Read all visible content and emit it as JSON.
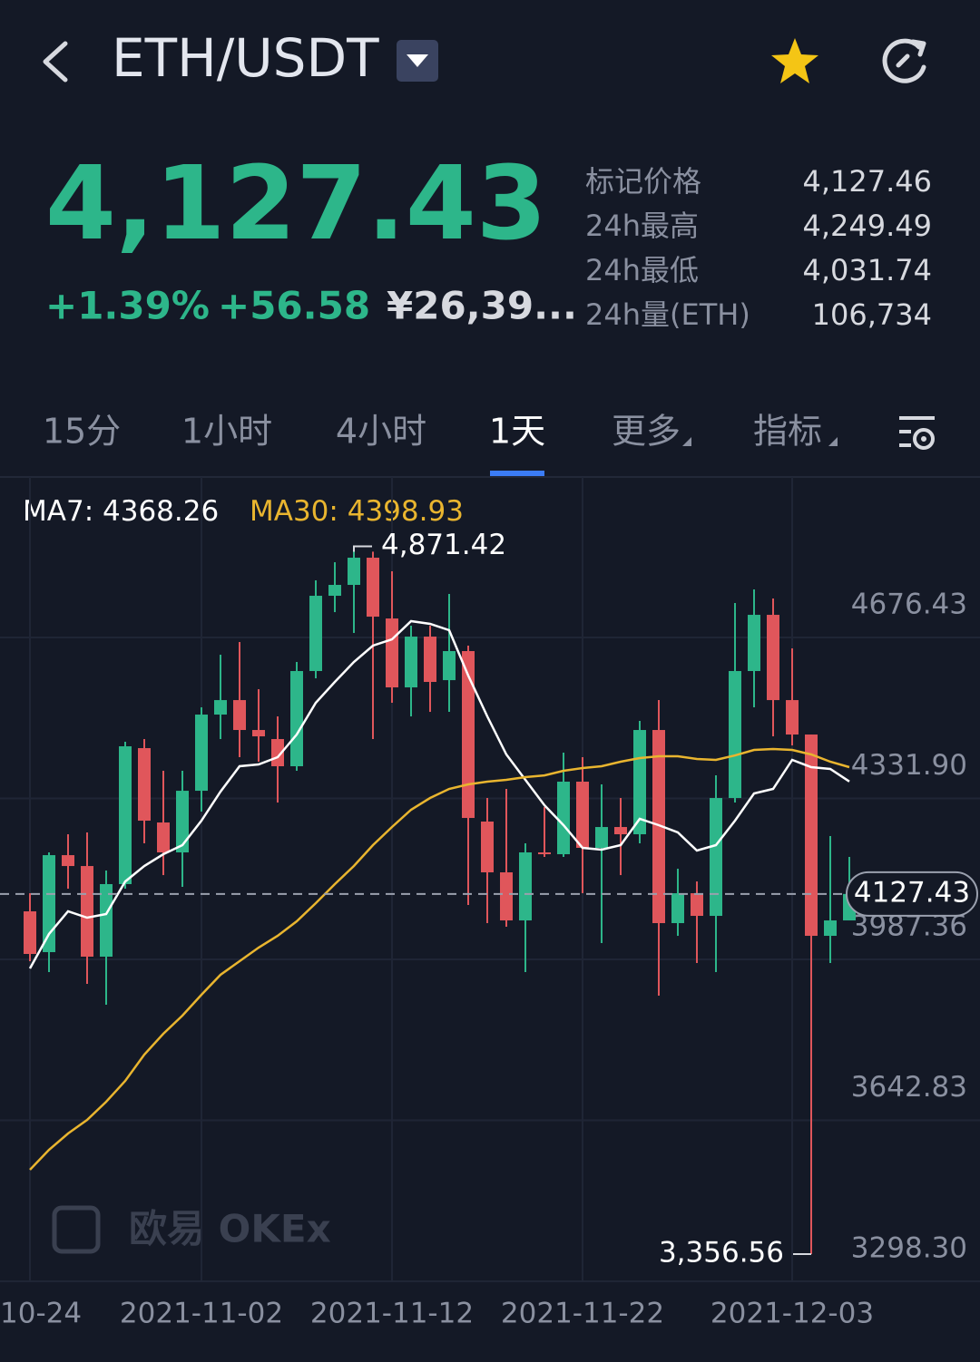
{
  "header": {
    "pair": "ETH/USDT"
  },
  "ticker": {
    "price": "4,127.43",
    "change_pct": "+1.39%",
    "change": "+56.58",
    "cny": "¥26,39...",
    "stats": [
      {
        "label": "标记价格",
        "value": "4,127.46"
      },
      {
        "label": "24h最高",
        "value": "4,249.49"
      },
      {
        "label": "24h最低",
        "value": "4,031.74"
      },
      {
        "label": "24h量(ETH)",
        "value": "106,734"
      }
    ]
  },
  "tabs": {
    "items": [
      "15分",
      "1小时",
      "4小时",
      "1天",
      "更多",
      "指标"
    ],
    "active": 3
  },
  "watermark": "欧易 OKEx",
  "chart_data": {
    "type": "candlestick",
    "up_color": "#2db68a",
    "down_color": "#e0565b",
    "categories": [
      "10-24",
      null,
      null,
      null,
      null,
      null,
      null,
      null,
      null,
      "2021-11-02",
      null,
      null,
      null,
      null,
      null,
      null,
      null,
      null,
      null,
      "2021-11-12",
      null,
      null,
      null,
      null,
      null,
      null,
      null,
      null,
      null,
      "2021-11-22",
      null,
      null,
      null,
      null,
      null,
      null,
      null,
      null,
      null,
      null,
      "2021-12-03",
      null,
      null,
      null
    ],
    "open": [
      4090.2,
      4002.9,
      4210.5,
      4187.2,
      3993.2,
      4148.5,
      4439.6,
      4280.4,
      4216.4,
      4348.3,
      4511.4,
      4542.4,
      4478.4,
      4459.0,
      4400.8,
      4604.6,
      4765.7,
      4789.0,
      4847.2,
      4717.1,
      4569.6,
      4678.3,
      4585.1,
      4647.3,
      4282.4,
      4173.7,
      4070.8,
      4216.4,
      4212.5,
      4367.8,
      4226.1,
      4270.7,
      4255.2,
      4478.4,
      4065.0,
      4129.0,
      4080.5,
      4332.8,
      4604.6,
      4724.9,
      4542.4,
      4468.7,
      4037.8,
      4070.8
    ],
    "high": [
      4129.0,
      4216.4,
      4255.2,
      4259.1,
      4177.6,
      4453.2,
      4459.0,
      4391.1,
      4391.1,
      4526.9,
      4639.5,
      4666.7,
      4565.7,
      4507.5,
      4624.0,
      4798.7,
      4837.5,
      4871.42,
      4860.0,
      4818.1,
      4701.6,
      4701.6,
      4769.5,
      4658.9,
      4332.8,
      4352.2,
      4235.8,
      4313.4,
      4429.9,
      4420.2,
      4361.9,
      4332.8,
      4497.8,
      4542.4,
      4181.4,
      4154.2,
      4381.3,
      4750.1,
      4779.2,
      4759.8,
      4653.1,
      4468.7,
      4251.3,
      4206.7
    ],
    "low": [
      3983.5,
      3960.1,
      4138.7,
      3935.0,
      3890.4,
      4138.7,
      4235.8,
      4167.8,
      4142.6,
      4303.7,
      4459.0,
      4420.2,
      4410.5,
      4323.1,
      4391.1,
      4589.0,
      4730.7,
      4686.1,
      4459.0,
      4536.6,
      4507.5,
      4517.2,
      4517.2,
      4103.8,
      4065.0,
      4057.2,
      3960.1,
      4206.7,
      4206.7,
      4129.0,
      4022.3,
      4167.8,
      4235.8,
      3909.7,
      4037.8,
      3979.6,
      3960.1,
      4323.1,
      4526.9,
      4464.8,
      4445.4,
      3356.56,
      3979.6,
      4070.8
    ],
    "close": [
      3999.0,
      4210.5,
      4187.2,
      3993.2,
      4148.5,
      4443.5,
      4284.3,
      4216.4,
      4348.3,
      4511.4,
      4542.4,
      4478.4,
      4464.8,
      4400.8,
      4604.6,
      4765.7,
      4789.0,
      4847.2,
      4721.0,
      4569.6,
      4678.3,
      4581.3,
      4647.3,
      4290.1,
      4173.7,
      4070.8,
      4216.4,
      4212.5,
      4367.8,
      4226.1,
      4270.7,
      4255.2,
      4478.4,
      4065.0,
      4129.0,
      4080.5,
      4332.8,
      4604.6,
      4724.9,
      4542.4,
      4468.7,
      4037.8,
      4070.8,
      4127.43
    ],
    "series": [
      {
        "name": "MA7",
        "color": "#ffffff",
        "values": [
          3967.9,
          4041.7,
          4090.2,
          4076.6,
          4084.4,
          4154.2,
          4187.2,
          4212.5,
          4231.9,
          4284.3,
          4346.4,
          4400.8,
          4404.6,
          4420.2,
          4468.7,
          4536.6,
          4581.3,
          4624.0,
          4658.9,
          4672.5,
          4711.3,
          4705.5,
          4691.9,
          4594.9,
          4507.5,
          4426.0,
          4371.6,
          4317.3,
          4274.6,
          4226.1,
          4222.2,
          4231.9,
          4288.2,
          4274.6,
          4259.1,
          4220.2,
          4231.9,
          4284.3,
          4342.5,
          4352.2,
          4414.3,
          4398.8,
          4394.9,
          4368.26
        ]
      },
      {
        "name": "MA30",
        "color": "#e9b52f",
        "values": [
          3537.0,
          3579.7,
          3614.6,
          3643.8,
          3682.6,
          3727.2,
          3783.5,
          3828.2,
          3867.0,
          3911.6,
          3954.3,
          3983.5,
          4012.6,
          4037.8,
          4068.8,
          4107.7,
          4148.5,
          4187.2,
          4231.9,
          4270.7,
          4307.6,
          4332.8,
          4352.2,
          4361.9,
          4367.8,
          4371.6,
          4377.5,
          4381.3,
          4391.1,
          4396.9,
          4400.8,
          4410.5,
          4418.2,
          4422.1,
          4422.1,
          4416.3,
          4414.3,
          4424.0,
          4435.7,
          4437.6,
          4435.7,
          4426.0,
          4410.5,
          4398.93
        ]
      }
    ],
    "ylim": [
      3298.3,
      5020.0
    ],
    "yticks": [
      4676.43,
      {
        "value": 4331.9,
        "label": "4331.90"
      },
      3987.36,
      3642.83,
      {
        "value": 3298.3,
        "label": "3298.30"
      }
    ],
    "last_price": 4127.43,
    "annotations": [
      {
        "value": 4871.42,
        "label": "4,871.42"
      },
      {
        "value": 3356.56,
        "label": "3,356.56"
      }
    ],
    "grid": true
  }
}
